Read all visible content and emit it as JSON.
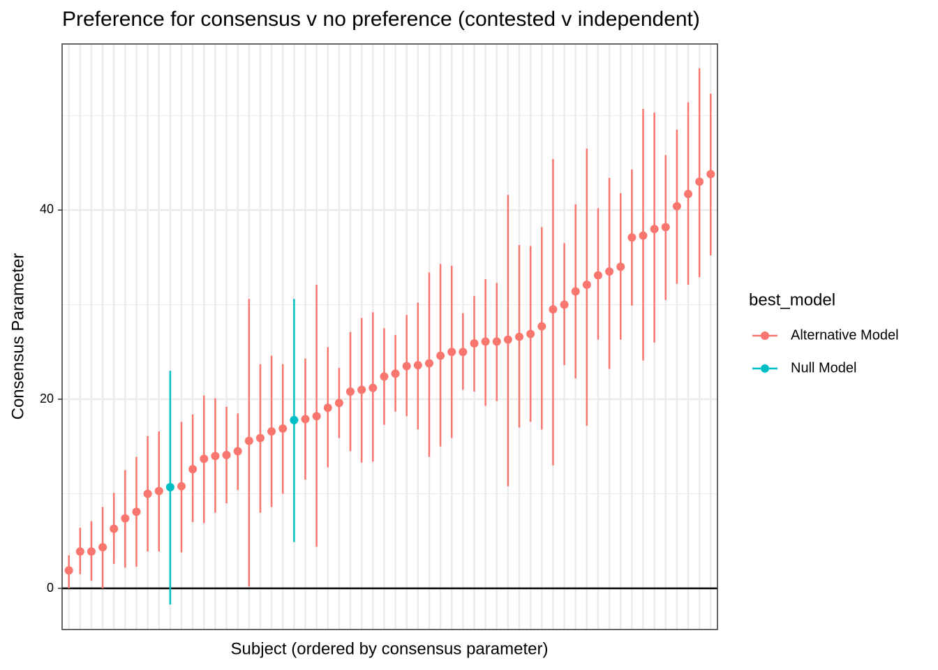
{
  "chart_data": {
    "type": "errorbar",
    "title": "Preference for consensus v no preference (contested v independent)",
    "x_label": "Subject (ordered by consensus parameter)",
    "y_label": "Consensus Parameter",
    "legend_title": "best_model",
    "legend_position": "right",
    "grid": true,
    "categories": [
      null,
      null,
      null,
      null,
      null,
      null,
      null,
      null,
      null,
      null,
      null,
      null,
      null,
      null,
      null,
      null,
      null,
      null,
      null,
      null,
      null,
      null,
      null,
      null,
      null,
      null,
      null,
      null,
      null,
      null,
      null,
      null,
      null,
      null,
      null,
      null,
      null,
      null,
      null,
      null,
      null,
      null,
      null,
      null,
      null,
      null,
      null,
      null,
      null,
      null,
      null,
      null,
      null,
      null,
      null,
      null,
      null,
      null
    ],
    "ylim": [
      -4.35,
      57.56
    ],
    "yticks": [
      0,
      20,
      40
    ],
    "y_minor_grid": [
      10,
      30,
      50
    ],
    "hline": 0,
    "series": [
      {
        "name": "Alternative Model",
        "color": "#f8766d",
        "values": [
          1.9,
          3.9,
          3.9,
          4.35,
          6.3,
          7.4,
          8.1,
          10.0,
          10.3,
          null,
          10.8,
          12.6,
          13.7,
          14.0,
          14.1,
          14.5,
          15.6,
          15.9,
          16.6,
          16.9,
          null,
          17.9,
          18.2,
          19.1,
          19.6,
          20.8,
          21.0,
          21.2,
          22.4,
          22.7,
          23.5,
          23.6,
          23.8,
          24.6,
          25.0,
          25.0,
          25.9,
          26.1,
          26.1,
          26.3,
          26.6,
          26.9,
          27.7,
          29.5,
          30.0,
          31.4,
          32.1,
          33.1,
          33.5,
          34.0,
          37.1,
          37.3,
          38.0,
          38.2,
          40.4,
          41.7,
          43.0,
          43.8
        ],
        "lower": [
          0,
          1.5,
          0.8,
          0,
          2.6,
          2.2,
          2.3,
          3.9,
          3.9,
          null,
          3.8,
          7.0,
          6.9,
          8.0,
          9.0,
          10.4,
          0.2,
          8.0,
          8.6,
          10.0,
          null,
          11.5,
          4.4,
          12.8,
          15.9,
          14.5,
          13.3,
          13.4,
          17.3,
          18.7,
          18.2,
          16.8,
          13.9,
          15.0,
          15.9,
          21.0,
          20.8,
          19.3,
          19.8,
          10.8,
          17.0,
          17.6,
          16.8,
          13.0,
          23.6,
          22.2,
          17.2,
          26.3,
          23.2,
          26.3,
          29.9,
          24.1,
          26.0,
          30.5,
          32.2,
          32.1,
          32.9,
          35.2
        ],
        "upper": [
          3.5,
          6.4,
          7.1,
          8.6,
          10.1,
          12.5,
          13.9,
          16.1,
          16.6,
          null,
          17.6,
          18.4,
          20.4,
          20.1,
          19.2,
          18.5,
          30.6,
          23.7,
          24.6,
          23.7,
          null,
          24.3,
          32.1,
          25.5,
          23.3,
          27.1,
          28.6,
          29.2,
          27.5,
          26.8,
          28.9,
          30.2,
          33.4,
          34.3,
          34.1,
          29.1,
          30.9,
          32.7,
          32.3,
          41.6,
          36.3,
          36.2,
          38.2,
          45.4,
          36.5,
          40.6,
          46.5,
          40.2,
          43.4,
          41.8,
          44.3,
          50.7,
          50.3,
          45.8,
          48.5,
          51.4,
          55.0,
          52.3
        ]
      },
      {
        "name": "Null Model",
        "color": "#00bfc4",
        "values": [
          null,
          null,
          null,
          null,
          null,
          null,
          null,
          null,
          null,
          10.7,
          null,
          null,
          null,
          null,
          null,
          null,
          null,
          null,
          null,
          null,
          17.8,
          null,
          null,
          null,
          null,
          null,
          null,
          null,
          null,
          null,
          null,
          null,
          null,
          null,
          null,
          null,
          null,
          null,
          null,
          null,
          null,
          null,
          null,
          null,
          null,
          null,
          null,
          null,
          null,
          null,
          null,
          null,
          null,
          null,
          null,
          null,
          null,
          null
        ],
        "lower": [
          null,
          null,
          null,
          null,
          null,
          null,
          null,
          null,
          null,
          -1.7,
          null,
          null,
          null,
          null,
          null,
          null,
          null,
          null,
          null,
          null,
          4.9,
          null,
          null,
          null,
          null,
          null,
          null,
          null,
          null,
          null,
          null,
          null,
          null,
          null,
          null,
          null,
          null,
          null,
          null,
          null,
          null,
          null,
          null,
          null,
          null,
          null,
          null,
          null,
          null,
          null,
          null,
          null,
          null,
          null,
          null,
          null,
          null,
          null
        ],
        "upper": [
          null,
          null,
          null,
          null,
          null,
          null,
          null,
          null,
          null,
          23.0,
          null,
          null,
          null,
          null,
          null,
          null,
          null,
          null,
          null,
          null,
          30.6,
          null,
          null,
          null,
          null,
          null,
          null,
          null,
          null,
          null,
          null,
          null,
          null,
          null,
          null,
          null,
          null,
          null,
          null,
          null,
          null,
          null,
          null,
          null,
          null,
          null,
          null,
          null,
          null,
          null,
          null,
          null,
          null,
          null,
          null,
          null,
          null,
          null
        ]
      }
    ]
  }
}
